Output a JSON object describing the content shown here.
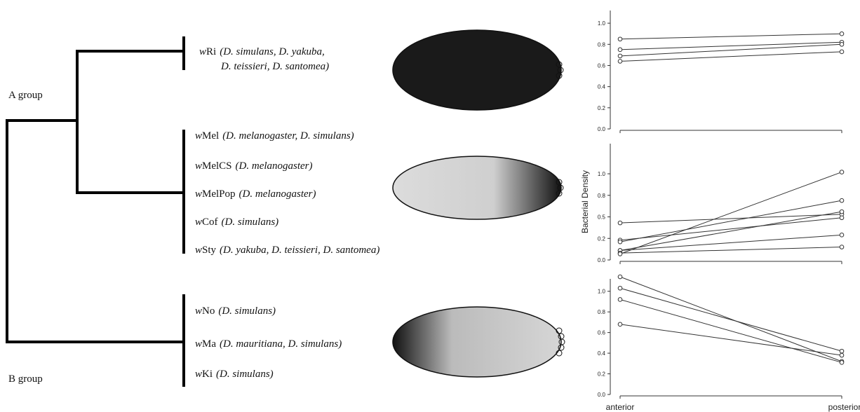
{
  "tree": {
    "groups": [
      "A group",
      "B group"
    ],
    "strains": [
      {
        "prefix": "w",
        "name": "Ri",
        "hosts": [
          "(D. simulans, D. yakuba,",
          "D. teissieri, D. santomea)"
        ]
      },
      {
        "prefix": "w",
        "name": "Mel",
        "hosts": [
          "(D. melanogaster, D. simulans)"
        ]
      },
      {
        "prefix": "w",
        "name": "MelCS",
        "hosts": [
          "(D. melanogaster)"
        ]
      },
      {
        "prefix": "w",
        "name": "MelPop",
        "hosts": [
          "(D. melanogaster)"
        ]
      },
      {
        "prefix": "w",
        "name": "Cof",
        "hosts": [
          "(D. simulans)"
        ]
      },
      {
        "prefix": "w",
        "name": "Sty",
        "hosts": [
          "(D. yakuba, D. teissieri, D. santomea)"
        ]
      },
      {
        "prefix": "w",
        "name": "No",
        "hosts": [
          "(D. simulans)"
        ]
      },
      {
        "prefix": "w",
        "name": "Ma",
        "hosts": [
          "(D. mauritiana, D. simulans)"
        ]
      },
      {
        "prefix": "w",
        "name": "Ki",
        "hosts": [
          "(D. simulans)"
        ]
      }
    ]
  },
  "chart_data": [
    {
      "type": "line",
      "ylim": [
        0,
        1.12
      ],
      "yticks": [
        {
          "value": 0,
          "label": "0.0"
        },
        0.2,
        0.4,
        0.6,
        0.8,
        {
          "value": 1,
          "label": "1.0"
        }
      ],
      "series": [
        {
          "color": "#333333",
          "values": [
            0.85,
            0.9
          ]
        },
        {
          "color": "#333333",
          "values": [
            0.75,
            0.82
          ]
        },
        {
          "color": "#333333",
          "values": [
            0.69,
            0.8
          ]
        },
        {
          "color": "#333333",
          "values": [
            0.64,
            0.73
          ]
        }
      ]
    },
    {
      "type": "line",
      "ylim": [
        0,
        1.35
      ],
      "ylabel": "Bacterial Density",
      "yticks": [
        {
          "value": 0,
          "label": "0.0"
        },
        {
          "value": 0.25,
          "label": "0.2"
        },
        0.5,
        {
          "value": 0.75,
          "label": "0.8"
        },
        {
          "value": 1,
          "label": "1.0"
        }
      ],
      "series": [
        {
          "color": "#333333",
          "values": [
            0.43,
            0.53
          ]
        },
        {
          "color": "#333333",
          "values": [
            0.23,
            0.49
          ]
        },
        {
          "color": "#333333",
          "values": [
            0.21,
            0.69
          ]
        },
        {
          "color": "#333333",
          "values": [
            0.11,
            0.56
          ]
        },
        {
          "color": "#333333",
          "values": [
            0.11,
            0.29
          ]
        },
        {
          "color": "#333333",
          "values": [
            0.08,
            0.15
          ]
        },
        {
          "color": "#333333",
          "values": [
            0.07,
            1.02
          ]
        }
      ]
    },
    {
      "type": "line",
      "ylim": [
        0,
        1.12
      ],
      "categories": [
        "anterior",
        "posterior"
      ],
      "yticks": [
        {
          "value": 0,
          "label": "0.0"
        },
        0.2,
        0.4,
        0.6,
        0.8,
        {
          "value": 1,
          "label": "1.0"
        }
      ],
      "series": [
        {
          "color": "#333333",
          "values": [
            1.14,
            0.32
          ]
        },
        {
          "color": "#333333",
          "values": [
            1.03,
            0.42
          ]
        },
        {
          "color": "#333333",
          "values": [
            0.92,
            0.31
          ]
        },
        {
          "color": "#333333",
          "values": [
            0.68,
            0.38
          ]
        }
      ]
    }
  ]
}
